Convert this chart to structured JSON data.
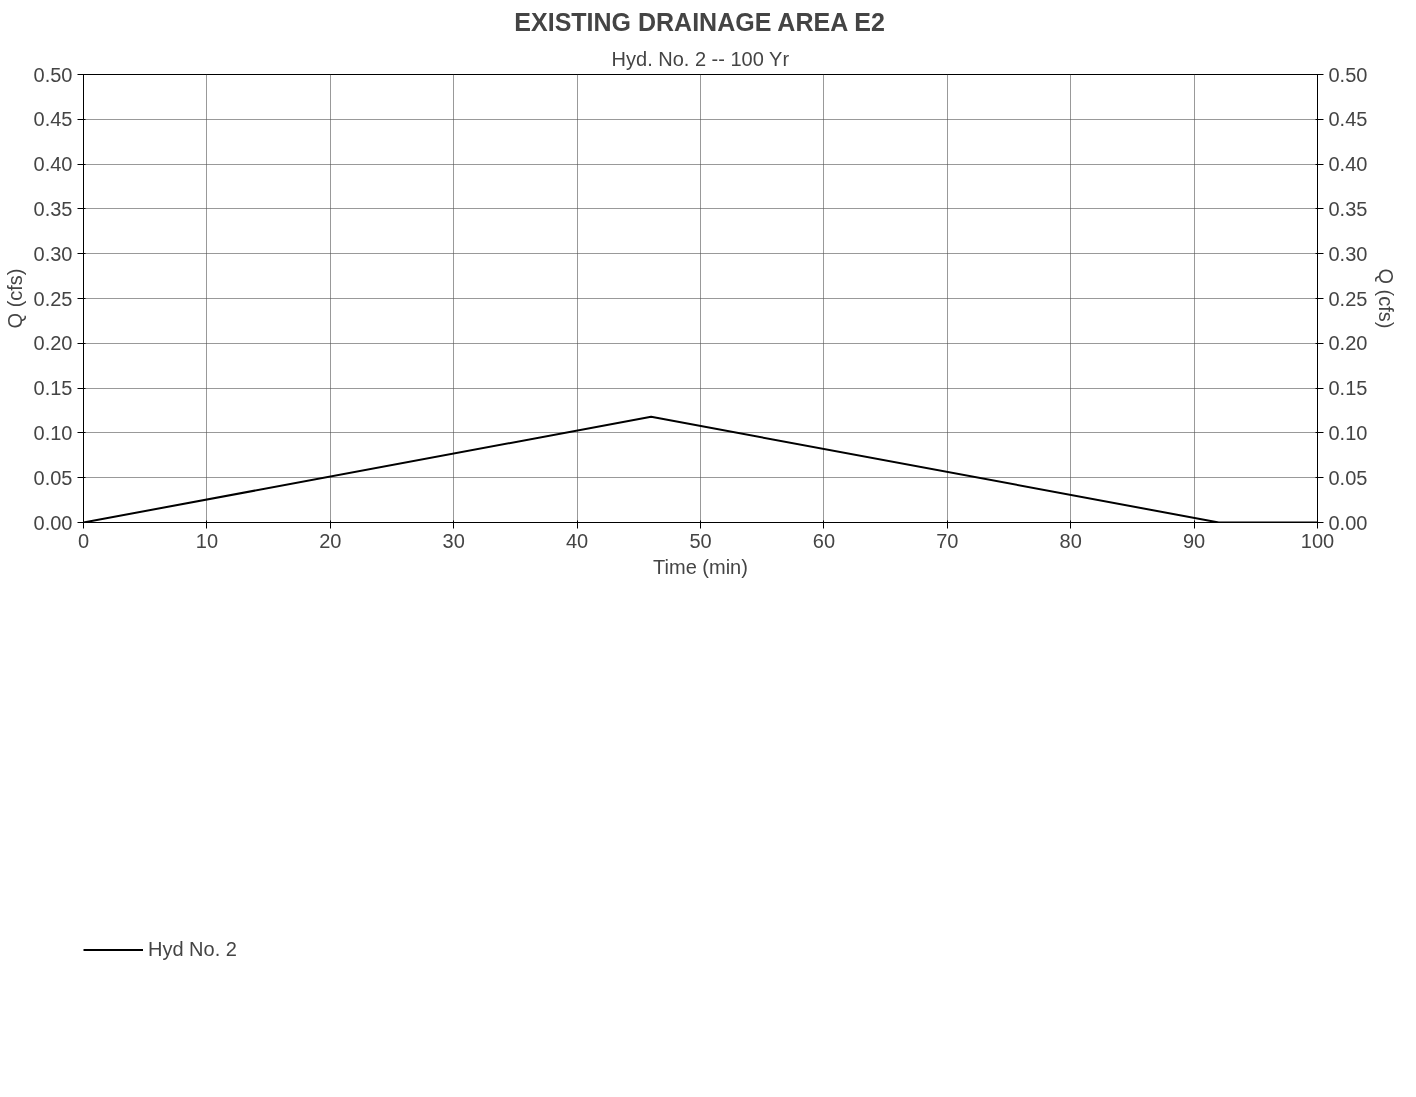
{
  "chart_data": {
    "type": "line",
    "title": "EXISTING DRAINAGE AREA E2",
    "subtitle": "Hyd. No. 2 -- 100 Yr",
    "xlabel": "Time (min)",
    "ylabel": "Q (cfs)",
    "y2label": "Q (cfs)",
    "series": [
      {
        "name": "Hyd No. 2",
        "color": "#000000",
        "x": [
          0,
          46,
          92,
          100
        ],
        "values": [
          0,
          0.118,
          0,
          0
        ]
      }
    ],
    "xlim": [
      0,
      100
    ],
    "xticks": [
      0,
      10,
      20,
      30,
      40,
      50,
      60,
      70,
      80,
      90,
      100
    ],
    "ylim": [
      0,
      0.5
    ],
    "yticks": [
      {
        "value": 0,
        "label": "0.00"
      },
      {
        "value": 0.05,
        "label": "0.05"
      },
      {
        "value": 0.1,
        "label": "0.10"
      },
      {
        "value": 0.15,
        "label": "0.15"
      },
      {
        "value": 0.2,
        "label": "0.20"
      },
      {
        "value": 0.25,
        "label": "0.25"
      },
      {
        "value": 0.3,
        "label": "0.30"
      },
      {
        "value": 0.35,
        "label": "0.35"
      },
      {
        "value": 0.4,
        "label": "0.40"
      },
      {
        "value": 0.45,
        "label": "0.45"
      },
      {
        "value": 0.5,
        "label": "0.50"
      }
    ],
    "y2lim": [
      0,
      0.5
    ],
    "y2ticks": [
      {
        "value": 0,
        "label": "0.00"
      },
      {
        "value": 0.05,
        "label": "0.05"
      },
      {
        "value": 0.1,
        "label": "0.10"
      },
      {
        "value": 0.15,
        "label": "0.15"
      },
      {
        "value": 0.2,
        "label": "0.20"
      },
      {
        "value": 0.25,
        "label": "0.25"
      },
      {
        "value": 0.3,
        "label": "0.30"
      },
      {
        "value": 0.35,
        "label": "0.35"
      },
      {
        "value": 0.4,
        "label": "0.40"
      },
      {
        "value": 0.45,
        "label": "0.45"
      },
      {
        "value": 0.5,
        "label": "0.50"
      }
    ],
    "grid": true,
    "legend": "bottom left",
    "marker": "none",
    "line_style": "solid"
  }
}
